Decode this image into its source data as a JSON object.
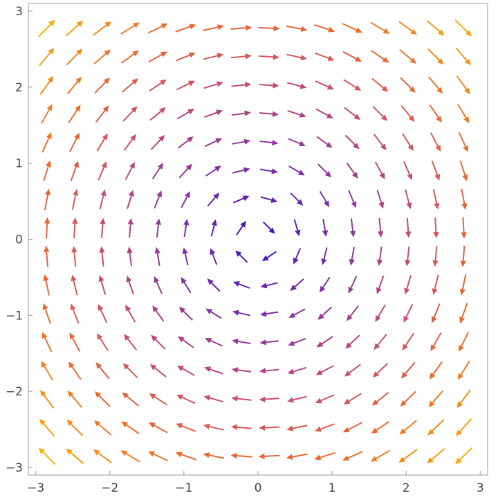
{
  "chart_data": {
    "type": "vector_field",
    "title": "",
    "xlabel": "",
    "ylabel": "",
    "field": {
      "vx": "y",
      "vy": "-x"
    },
    "direction": "clockwise",
    "xlim": [
      -3.1,
      3.1
    ],
    "ylim": [
      -3.1,
      3.1
    ],
    "grid_x": [
      -2.85,
      -2.475,
      -2.1,
      -1.725,
      -1.35,
      -0.975,
      -0.6,
      -0.225,
      0.15,
      0.525,
      0.9,
      1.275,
      1.65,
      2.025,
      2.4,
      2.775
    ],
    "grid_y": [
      -2.85,
      -2.475,
      -2.1,
      -1.725,
      -1.35,
      -0.975,
      -0.6,
      -0.225,
      0.15,
      0.525,
      0.9,
      1.275,
      1.65,
      2.025,
      2.4,
      2.775
    ],
    "x_ticks": [
      -3,
      -2,
      -1,
      0,
      1,
      2,
      3
    ],
    "y_ticks": [
      -3,
      -2,
      -1,
      0,
      1,
      2,
      3
    ],
    "x_tick_labels": [
      "−3",
      "−2",
      "−1",
      "0",
      "1",
      "2",
      "3"
    ],
    "y_tick_labels": [
      "−3",
      "−2",
      "−1",
      "0",
      "1",
      "2",
      "3"
    ],
    "colormap": [
      "#3b0fb8",
      "#7b2ea8",
      "#c04a78",
      "#ee6a2a",
      "#fbb005"
    ],
    "color_by": "magnitude",
    "grid": false,
    "legend": "none"
  }
}
